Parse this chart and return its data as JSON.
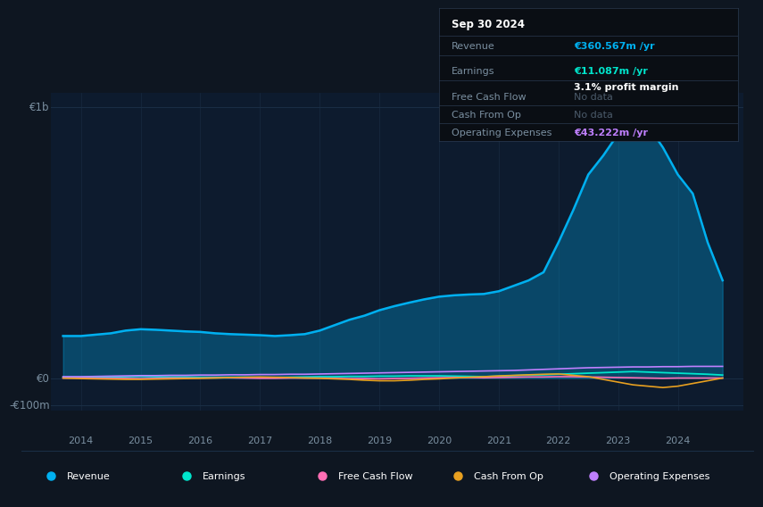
{
  "bg_color": "#0e1621",
  "plot_bg_color": "#0d1b2e",
  "grid_color": "#1a2e45",
  "title_date": "Sep 30 2024",
  "tooltip": {
    "Revenue": "€360.567m /yr",
    "Earnings": "€11.087m /yr",
    "profit_margin": "3.1% profit margin",
    "Free Cash Flow": "No data",
    "Cash From Op": "No data",
    "Operating Expenses": "€43.222m /yr"
  },
  "revenue_color": "#00b0f0",
  "earnings_color": "#00e5cc",
  "fcf_color": "#ff6eb4",
  "cashfromop_color": "#e8a020",
  "opex_color": "#c080ff",
  "ylabel_1b": "€1b",
  "ylabel_0": "€0",
  "ylabel_neg100m": "-€100m",
  "years": [
    2013.7,
    2014.0,
    2014.25,
    2014.5,
    2014.75,
    2015.0,
    2015.25,
    2015.5,
    2015.75,
    2016.0,
    2016.25,
    2016.5,
    2016.75,
    2017.0,
    2017.25,
    2017.5,
    2017.75,
    2018.0,
    2018.25,
    2018.5,
    2018.75,
    2019.0,
    2019.25,
    2019.5,
    2019.75,
    2020.0,
    2020.25,
    2020.5,
    2020.75,
    2021.0,
    2021.25,
    2021.5,
    2021.75,
    2022.0,
    2022.25,
    2022.5,
    2022.75,
    2023.0,
    2023.25,
    2023.5,
    2023.75,
    2024.0,
    2024.25,
    2024.5,
    2024.75
  ],
  "revenue": [
    155,
    155,
    160,
    165,
    175,
    180,
    178,
    175,
    172,
    170,
    165,
    162,
    160,
    158,
    155,
    158,
    162,
    175,
    195,
    215,
    230,
    250,
    265,
    278,
    290,
    300,
    305,
    308,
    310,
    320,
    340,
    360,
    390,
    500,
    620,
    750,
    820,
    900,
    950,
    930,
    850,
    750,
    680,
    500,
    360
  ],
  "earnings": [
    3,
    3,
    4,
    4,
    5,
    6,
    5,
    4,
    4,
    3,
    3,
    3,
    3,
    2,
    2,
    3,
    4,
    5,
    5,
    6,
    6,
    7,
    7,
    8,
    8,
    8,
    7,
    6,
    5,
    7,
    9,
    11,
    12,
    14,
    16,
    18,
    20,
    22,
    24,
    22,
    20,
    18,
    16,
    14,
    11
  ],
  "free_cash_flow": [
    0,
    0,
    -1,
    -1,
    -1,
    -2,
    -1,
    0,
    0,
    0,
    1,
    1,
    0,
    -1,
    -1,
    0,
    0,
    0,
    -1,
    -2,
    -2,
    -3,
    -2,
    -1,
    0,
    1,
    2,
    2,
    1,
    2,
    3,
    4,
    4,
    5,
    5,
    4,
    3,
    2,
    1,
    0,
    -1,
    0,
    0,
    0,
    0
  ],
  "cash_from_op": [
    0,
    -2,
    -3,
    -4,
    -5,
    -5,
    -4,
    -3,
    -2,
    -1,
    0,
    2,
    3,
    4,
    3,
    2,
    0,
    -1,
    -3,
    -5,
    -8,
    -10,
    -10,
    -8,
    -5,
    -3,
    0,
    3,
    5,
    8,
    10,
    12,
    14,
    15,
    10,
    5,
    -5,
    -15,
    -25,
    -30,
    -35,
    -30,
    -20,
    -10,
    0
  ],
  "operating_expenses": [
    5,
    5,
    6,
    7,
    8,
    9,
    9,
    10,
    10,
    11,
    11,
    12,
    12,
    13,
    13,
    14,
    14,
    15,
    16,
    17,
    18,
    19,
    20,
    21,
    22,
    23,
    24,
    25,
    26,
    27,
    28,
    30,
    32,
    34,
    36,
    38,
    39,
    40,
    41,
    41,
    42,
    42,
    43,
    43,
    43
  ],
  "legend_labels": [
    "Revenue",
    "Earnings",
    "Free Cash Flow",
    "Cash From Op",
    "Operating Expenses"
  ],
  "xmin": 2013.5,
  "xmax": 2025.1,
  "ymin": -120,
  "ymax": 1050
}
